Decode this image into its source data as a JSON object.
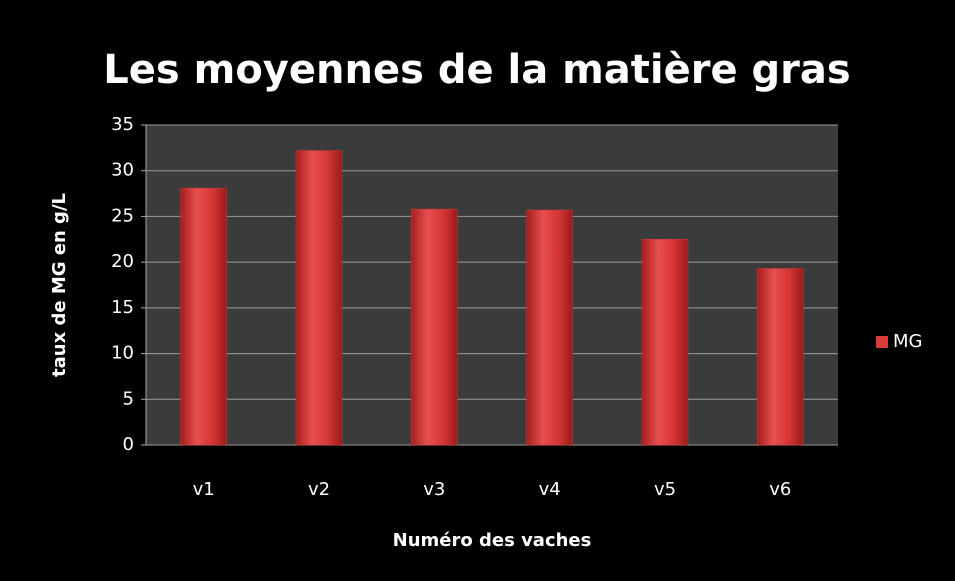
{
  "chart_data": {
    "type": "bar",
    "title": "Les moyennes de la matière gras",
    "x_label": "Numéro des vaches",
    "y_label": "taux de MG en g/L",
    "categories": [
      "v1",
      "v2",
      "v3",
      "v4",
      "v5",
      "v6"
    ],
    "series": [
      {
        "name": "MG",
        "color": "#d93a3a",
        "values": [
          28.1,
          32.2,
          25.8,
          25.7,
          22.5,
          19.3
        ]
      }
    ],
    "ylim": [
      0,
      35
    ],
    "yticks": [
      0,
      5,
      10,
      15,
      20,
      25,
      30,
      35
    ],
    "grid": true,
    "legend": "right"
  }
}
